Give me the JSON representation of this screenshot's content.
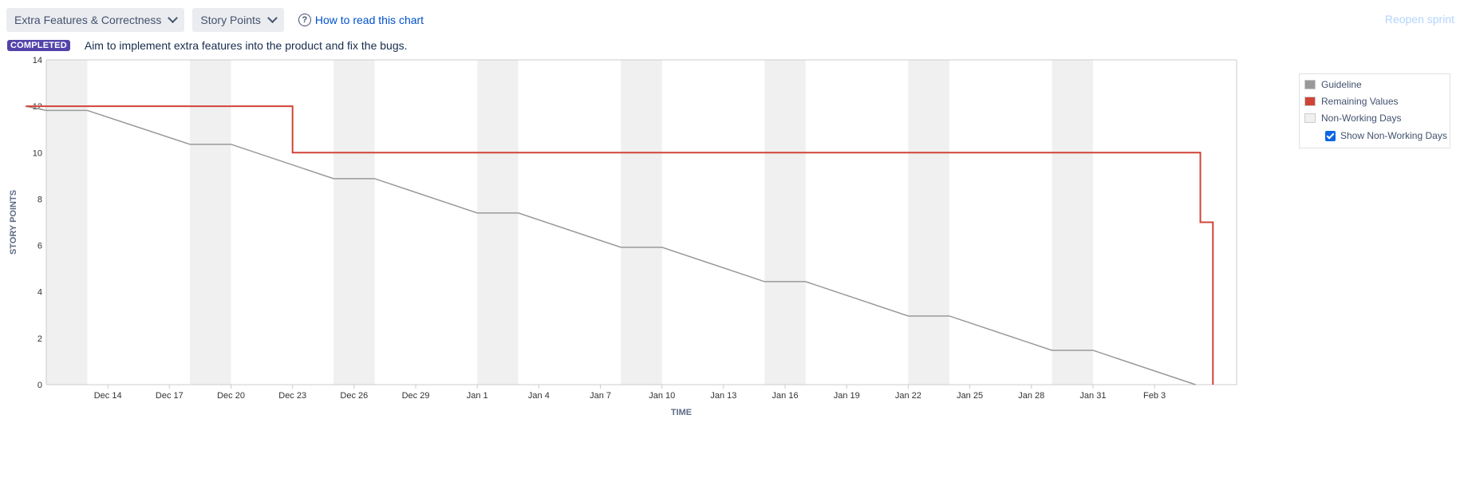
{
  "toolbar": {
    "sprint_select": "Extra Features & Correctness",
    "estimate_select": "Story Points",
    "help_link": "How to read this chart",
    "reopen": "Reopen sprint"
  },
  "status": {
    "badge": "COMPLETED",
    "goal": "Aim to implement extra features into the product and fix the bugs."
  },
  "legend": {
    "guideline": "Guideline",
    "remaining": "Remaining Values",
    "nonworking": "Non-Working Days",
    "show_nonworking": "Show Non-Working Days"
  },
  "colors": {
    "guideline": "#999999",
    "remaining": "#d04437",
    "nonworking": "#f0f0f0"
  },
  "chart_data": {
    "type": "line",
    "xlabel": "TIME",
    "ylabel": "STORY POINTS",
    "ylim": [
      0,
      14
    ],
    "yticks": [
      0,
      2,
      4,
      6,
      8,
      10,
      12,
      14
    ],
    "xlim": [
      "Dec 11",
      "Feb 7"
    ],
    "xticks": [
      {
        "date": "Dec 14",
        "label": "Dec 14"
      },
      {
        "date": "Dec 17",
        "label": "Dec 17"
      },
      {
        "date": "Dec 20",
        "label": "Dec 20"
      },
      {
        "date": "Dec 23",
        "label": "Dec 23"
      },
      {
        "date": "Dec 26",
        "label": "Dec 26"
      },
      {
        "date": "Dec 29",
        "label": "Dec 29"
      },
      {
        "date": "Jan 1",
        "label": "Jan 1"
      },
      {
        "date": "Jan 4",
        "label": "Jan 4"
      },
      {
        "date": "Jan 7",
        "label": "Jan 7"
      },
      {
        "date": "Jan 10",
        "label": "Jan 10"
      },
      {
        "date": "Jan 13",
        "label": "Jan 13"
      },
      {
        "date": "Jan 16",
        "label": "Jan 16"
      },
      {
        "date": "Jan 19",
        "label": "Jan 19"
      },
      {
        "date": "Jan 22",
        "label": "Jan 22"
      },
      {
        "date": "Jan 25",
        "label": "Jan 25"
      },
      {
        "date": "Jan 28",
        "label": "Jan 28"
      },
      {
        "date": "Jan 31",
        "label": "Jan 31"
      },
      {
        "date": "Feb 3",
        "label": "Feb 3"
      }
    ],
    "non_working_days": [
      [
        "Dec 11",
        "Dec 13"
      ],
      [
        "Dec 18",
        "Dec 20"
      ],
      [
        "Dec 25",
        "Dec 27"
      ],
      [
        "Jan 1",
        "Jan 3"
      ],
      [
        "Jan 8",
        "Jan 10"
      ],
      [
        "Jan 15",
        "Jan 17"
      ],
      [
        "Jan 22",
        "Jan 24"
      ],
      [
        "Jan 29",
        "Jan 31"
      ]
    ],
    "series": [
      {
        "name": "Guideline",
        "points": [
          [
            "Dec 10",
            12
          ],
          [
            "Dec 11",
            11.82
          ],
          [
            "Dec 13",
            11.82
          ],
          [
            "Dec 18",
            10.36
          ],
          [
            "Dec 20",
            10.36
          ],
          [
            "Dec 25",
            8.88
          ],
          [
            "Dec 27",
            8.88
          ],
          [
            "Jan 1",
            7.4
          ],
          [
            "Jan 3",
            7.4
          ],
          [
            "Jan 8",
            5.92
          ],
          [
            "Jan 10",
            5.92
          ],
          [
            "Jan 15",
            4.44
          ],
          [
            "Jan 17",
            4.44
          ],
          [
            "Jan 22",
            2.96
          ],
          [
            "Jan 24",
            2.96
          ],
          [
            "Jan 29",
            1.48
          ],
          [
            "Jan 31",
            1.48
          ],
          [
            "Feb 5",
            0
          ]
        ]
      },
      {
        "name": "Remaining Values",
        "step": true,
        "points": [
          [
            "Dec 10",
            12
          ],
          [
            "Dec 23",
            12
          ],
          [
            "Dec 23",
            10
          ],
          [
            "Feb 5",
            10
          ],
          [
            "Feb 5",
            9
          ],
          [
            "Feb 5",
            7
          ],
          [
            "Feb 6",
            7
          ],
          [
            "Feb 6",
            4
          ],
          [
            "Feb 6",
            4
          ],
          [
            "Feb 6",
            0
          ]
        ]
      }
    ]
  }
}
